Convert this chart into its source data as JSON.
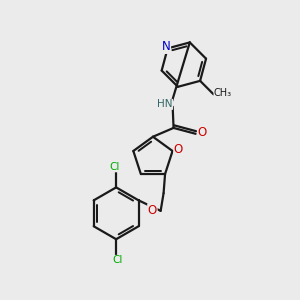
{
  "background_color": "#ebebeb",
  "bond_color": "#1a1a1a",
  "N_color": "#0000cc",
  "O_color": "#cc0000",
  "Cl_color": "#00aa00",
  "H_color": "#336666",
  "line_width": 1.6,
  "figsize": [
    3.0,
    3.0
  ],
  "dpi": 100,
  "xlim": [
    0,
    10
  ],
  "ylim": [
    0,
    10
  ]
}
